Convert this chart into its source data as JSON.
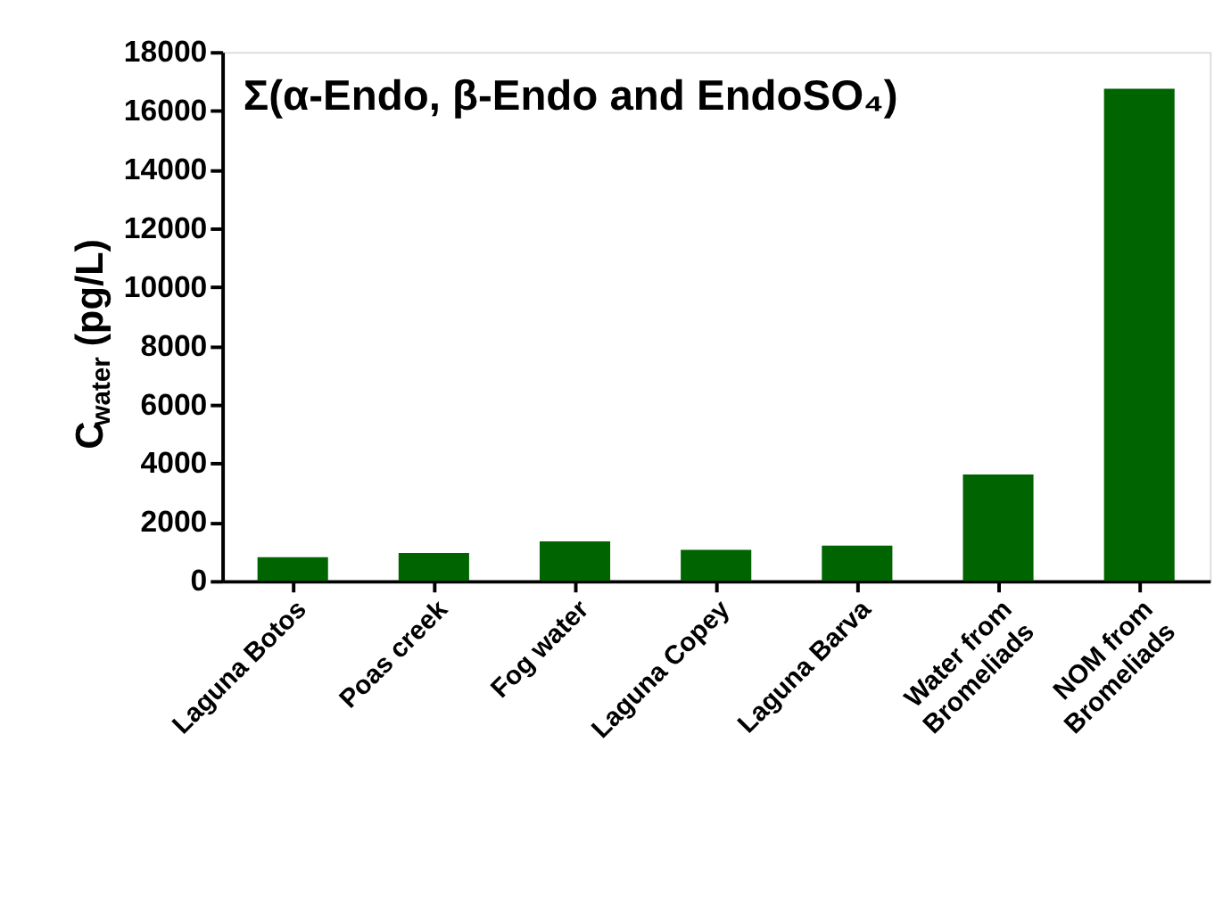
{
  "chart_data": {
    "type": "bar",
    "title": "Σ(α-Endo, β-Endo and EndoSO₄)",
    "ylabel": "C$_{water}$ (pg/L)",
    "categories": [
      "Laguna Botos",
      "Poas creek",
      "Fog water",
      "Laguna Copey",
      "Laguna Barva",
      "Water from\nBromeliads",
      "NOM from\nBromeliads"
    ],
    "values": [
      810,
      950,
      1350,
      1060,
      1200,
      3620,
      16750
    ],
    "color": "#006400",
    "ylim": [
      0,
      18000
    ],
    "yticks": [
      0,
      2000,
      4000,
      6000,
      8000,
      10000,
      12000,
      14000,
      16000,
      18000
    ],
    "grid": false
  }
}
